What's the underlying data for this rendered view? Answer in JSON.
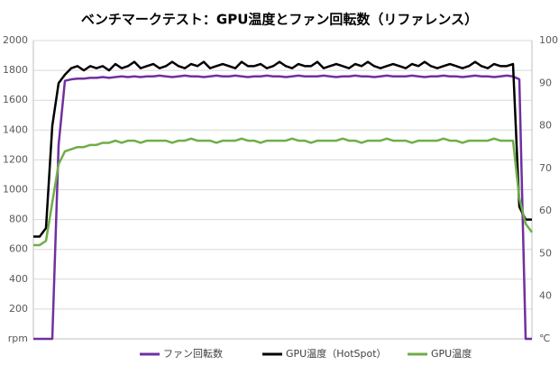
{
  "chart_data": {
    "type": "line",
    "title": "ベンチマークテスト：GPU温度とファン回転数（リファレンス）",
    "ylim": [
      0,
      2000
    ],
    "yticks": [
      {
        "value": 0,
        "label": "rpm"
      },
      200,
      400,
      600,
      800,
      1000,
      1200,
      1400,
      1600,
      1800,
      2000
    ],
    "y2lim": [
      30,
      100
    ],
    "y2ticks": [
      {
        "value": 30,
        "label": "℃"
      },
      40,
      50,
      60,
      70,
      80,
      90,
      100
    ],
    "grid": true,
    "legend": "bottom",
    "series": [
      {
        "name": "ファン回転数",
        "color": "#7030a0",
        "values": [
          0,
          0,
          0,
          0,
          1300,
          1730,
          1740,
          1745,
          1745,
          1750,
          1750,
          1755,
          1750,
          1755,
          1760,
          1755,
          1760,
          1755,
          1760,
          1760,
          1765,
          1760,
          1755,
          1760,
          1765,
          1760,
          1760,
          1755,
          1760,
          1765,
          1760,
          1760,
          1765,
          1760,
          1755,
          1760,
          1760,
          1765,
          1760,
          1760,
          1755,
          1760,
          1765,
          1760,
          1760,
          1760,
          1765,
          1760,
          1755,
          1760,
          1760,
          1765,
          1760,
          1760,
          1755,
          1760,
          1765,
          1760,
          1760,
          1760,
          1765,
          1760,
          1755,
          1760,
          1760,
          1765,
          1760,
          1760,
          1755,
          1760,
          1765,
          1760,
          1760,
          1755,
          1760,
          1765,
          1760,
          1740,
          0,
          0
        ]
      },
      {
        "name": "GPU温度（HotSpot）",
        "color": "#000000",
        "axis": "y2",
        "values": [
          54,
          54,
          56,
          80,
          90,
          92,
          93.5,
          94,
          93,
          94,
          93.5,
          94,
          93,
          94.5,
          93.5,
          94,
          95,
          93.5,
          94,
          94.5,
          93.5,
          94,
          95,
          94,
          93.5,
          94.5,
          94,
          95,
          93.5,
          94,
          94.5,
          94,
          93.5,
          95,
          94,
          94,
          94.5,
          93.5,
          94,
          95,
          94,
          93.5,
          94.5,
          94,
          94,
          95,
          93.5,
          94,
          94.5,
          94,
          93.5,
          94.5,
          94,
          95,
          94,
          93.5,
          94,
          94.5,
          94,
          93.5,
          94.5,
          94,
          95,
          94,
          93.5,
          94,
          94.5,
          94,
          93.5,
          94,
          95,
          94,
          93.5,
          94.5,
          94,
          94,
          94.5,
          61,
          58,
          58
        ]
      },
      {
        "name": "GPU温度",
        "color": "#70ad47",
        "axis": "y2",
        "values": [
          52,
          52,
          53,
          62,
          71,
          74,
          74.5,
          75,
          75,
          75.5,
          75.5,
          76,
          76,
          76.5,
          76,
          76.5,
          76.5,
          76,
          76.5,
          76.5,
          76.5,
          76.5,
          76,
          76.5,
          76.5,
          77,
          76.5,
          76.5,
          76.5,
          76,
          76.5,
          76.5,
          76.5,
          77,
          76.5,
          76.5,
          76,
          76.5,
          76.5,
          76.5,
          76.5,
          77,
          76.5,
          76.5,
          76,
          76.5,
          76.5,
          76.5,
          76.5,
          77,
          76.5,
          76.5,
          76,
          76.5,
          76.5,
          76.5,
          77,
          76.5,
          76.5,
          76.5,
          76,
          76.5,
          76.5,
          76.5,
          76.5,
          77,
          76.5,
          76.5,
          76,
          76.5,
          76.5,
          76.5,
          76.5,
          77,
          76.5,
          76.5,
          76.5,
          63,
          57,
          55
        ]
      }
    ]
  }
}
